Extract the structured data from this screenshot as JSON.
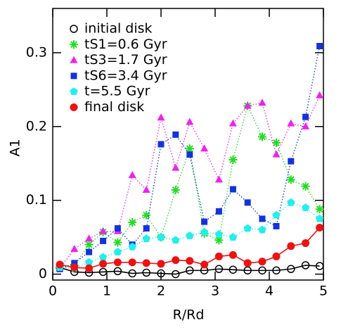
{
  "chart_data": {
    "type": "line",
    "xlabel": "R/Rd",
    "ylabel": "A1",
    "x": [
      0.13,
      0.4,
      0.67,
      0.93,
      1.2,
      1.47,
      1.73,
      2.0,
      2.27,
      2.53,
      2.8,
      3.07,
      3.33,
      3.6,
      3.87,
      4.13,
      4.4,
      4.67,
      4.93
    ],
    "xlim": [
      0,
      5
    ],
    "xticks": [
      0,
      1,
      2,
      3,
      4,
      5
    ],
    "ylim": [
      -0.008,
      0.36
    ],
    "yticks": [
      0,
      0.1,
      0.2,
      0.3
    ],
    "legend": "upper left",
    "series": [
      {
        "name": "initial disk",
        "color": "#000000",
        "marker": "circle-open",
        "line": "solid",
        "values": [
          0.009,
          0.003,
          0.002,
          0.003,
          0.004,
          0.001,
          0.002,
          0.001,
          0.0,
          0.005,
          0.005,
          0.007,
          0.006,
          0.005,
          0.005,
          0.005,
          0.007,
          0.012,
          0.011
        ]
      },
      {
        "name": "tS1=0.6 Gyr",
        "color": "#22dd22",
        "marker": "star",
        "line": "dotted",
        "values": [
          0.01,
          0.012,
          0.04,
          0.057,
          0.043,
          0.07,
          0.08,
          0.05,
          0.114,
          0.17,
          0.055,
          0.046,
          0.155,
          0.228,
          0.186,
          0.178,
          0.128,
          0.119,
          0.088
        ]
      },
      {
        "name": "tS3=1.7 Gyr",
        "color": "#ee22ee",
        "marker": "triangle",
        "line": "dotted",
        "values": [
          0.008,
          0.034,
          0.048,
          0.058,
          0.058,
          0.134,
          0.114,
          0.212,
          0.144,
          0.206,
          0.17,
          0.128,
          0.204,
          0.228,
          0.232,
          0.162,
          0.204,
          0.2,
          0.242
        ]
      },
      {
        "name": "tS6=3.4 Gyr",
        "color": "#1133dd",
        "marker": "square",
        "line": "dotted",
        "values": [
          0.007,
          0.015,
          0.03,
          0.045,
          0.062,
          0.04,
          0.062,
          0.176,
          0.189,
          0.162,
          0.071,
          0.085,
          0.115,
          0.097,
          0.075,
          0.065,
          0.153,
          0.213,
          0.309
        ]
      },
      {
        "name": "t=5.5 Gyr",
        "color": "#22eeee",
        "marker": "pentagon",
        "line": "dotted",
        "values": [
          0.009,
          0.008,
          0.016,
          0.023,
          0.03,
          0.037,
          0.048,
          0.05,
          0.046,
          0.052,
          0.057,
          0.054,
          0.05,
          0.062,
          0.06,
          0.08,
          0.097,
          0.09,
          0.075
        ]
      },
      {
        "name": "final disk",
        "color": "#ee1111",
        "marker": "circle",
        "line": "solid",
        "values": [
          0.013,
          0.009,
          0.008,
          0.014,
          0.016,
          0.016,
          0.015,
          0.014,
          0.019,
          0.018,
          0.013,
          0.024,
          0.026,
          0.015,
          0.017,
          0.024,
          0.038,
          0.042,
          0.063
        ]
      }
    ]
  }
}
